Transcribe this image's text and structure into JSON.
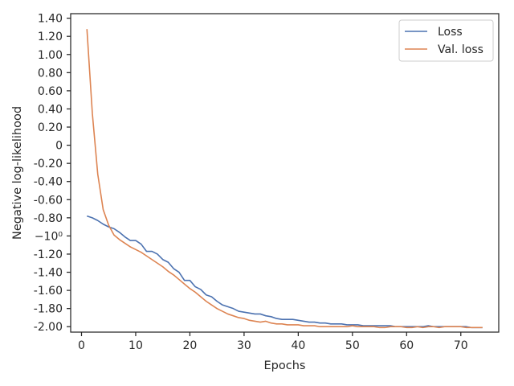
{
  "chart_data": {
    "type": "line",
    "xlabel": "Epochs",
    "ylabel": "Negative log-likelihood",
    "xlim": [
      -2,
      77
    ],
    "ylim": [
      -2.06,
      1.45
    ],
    "x_ticks": [
      0,
      10,
      20,
      30,
      40,
      50,
      60,
      70
    ],
    "y_ticks": [
      {
        "value": 1.4,
        "label": "1.40"
      },
      {
        "value": 1.2,
        "label": "1.20"
      },
      {
        "value": 1.0,
        "label": "1.00"
      },
      {
        "value": 0.8,
        "label": "0.80"
      },
      {
        "value": 0.6,
        "label": "0.60"
      },
      {
        "value": 0.4,
        "label": "0.40"
      },
      {
        "value": 0.2,
        "label": "0.20"
      },
      {
        "value": 0.0,
        "label": "0"
      },
      {
        "value": -0.2,
        "label": "-0.20"
      },
      {
        "value": -0.4,
        "label": "-0.40"
      },
      {
        "value": -0.6,
        "label": "-0.60"
      },
      {
        "value": -0.8,
        "label": "-0.80"
      },
      {
        "value": -1.0,
        "label": "−10⁰"
      },
      {
        "value": -1.2,
        "label": "-1.20"
      },
      {
        "value": -1.4,
        "label": "-1.40"
      },
      {
        "value": -1.6,
        "label": "-1.60"
      },
      {
        "value": -1.8,
        "label": "-1.80"
      },
      {
        "value": -2.0,
        "label": "-2.00"
      }
    ],
    "grid": false,
    "legend_position": "top-right",
    "series": [
      {
        "name": "Loss",
        "color": "#4c72b0",
        "x": [
          1,
          2,
          3,
          4,
          5,
          6,
          7,
          8,
          9,
          10,
          11,
          12,
          13,
          14,
          15,
          16,
          17,
          18,
          19,
          20,
          21,
          22,
          23,
          24,
          25,
          26,
          27,
          28,
          29,
          30,
          31,
          32,
          33,
          34,
          35,
          36,
          37,
          38,
          39,
          40,
          41,
          42,
          43,
          44,
          45,
          46,
          47,
          48,
          49,
          50,
          51,
          52,
          53,
          54,
          55,
          56,
          57,
          58,
          59,
          60,
          61,
          62,
          63,
          64,
          65,
          66,
          67,
          68,
          69,
          70,
          71,
          72,
          73,
          74
        ],
        "y": [
          -0.78,
          -0.8,
          -0.83,
          -0.87,
          -0.9,
          -0.92,
          -0.96,
          -1.01,
          -1.05,
          -1.05,
          -1.09,
          -1.17,
          -1.17,
          -1.2,
          -1.26,
          -1.29,
          -1.36,
          -1.4,
          -1.49,
          -1.49,
          -1.56,
          -1.59,
          -1.65,
          -1.67,
          -1.72,
          -1.76,
          -1.78,
          -1.8,
          -1.83,
          -1.84,
          -1.85,
          -1.86,
          -1.86,
          -1.88,
          -1.89,
          -1.91,
          -1.92,
          -1.92,
          -1.92,
          -1.93,
          -1.94,
          -1.95,
          -1.95,
          -1.96,
          -1.96,
          -1.97,
          -1.97,
          -1.97,
          -1.98,
          -1.98,
          -1.98,
          -1.99,
          -1.99,
          -1.99,
          -1.99,
          -1.99,
          -1.99,
          -2.0,
          -2.0,
          -2.0,
          -2.0,
          -2.0,
          -2.0,
          -1.99,
          -2.0,
          -2.0,
          -2.0,
          -2.0,
          -2.0,
          -2.0,
          -2.0,
          -2.01,
          -2.01,
          -2.01
        ]
      },
      {
        "name": "Val. loss",
        "color": "#dd8452",
        "x": [
          1,
          2,
          3,
          4,
          5,
          6,
          7,
          8,
          9,
          10,
          11,
          12,
          13,
          14,
          15,
          16,
          17,
          18,
          19,
          20,
          21,
          22,
          23,
          24,
          25,
          26,
          27,
          28,
          29,
          30,
          31,
          32,
          33,
          34,
          35,
          36,
          37,
          38,
          39,
          40,
          41,
          42,
          43,
          44,
          45,
          46,
          47,
          48,
          49,
          50,
          51,
          52,
          53,
          54,
          55,
          56,
          57,
          58,
          59,
          60,
          61,
          62,
          63,
          64,
          65,
          66,
          67,
          68,
          69,
          70,
          71,
          72,
          73,
          74
        ],
        "y": [
          1.28,
          0.35,
          -0.32,
          -0.71,
          -0.88,
          -0.99,
          -1.04,
          -1.08,
          -1.12,
          -1.15,
          -1.18,
          -1.22,
          -1.26,
          -1.3,
          -1.34,
          -1.39,
          -1.43,
          -1.48,
          -1.53,
          -1.58,
          -1.62,
          -1.67,
          -1.72,
          -1.76,
          -1.8,
          -1.83,
          -1.86,
          -1.88,
          -1.9,
          -1.91,
          -1.93,
          -1.94,
          -1.95,
          -1.94,
          -1.96,
          -1.97,
          -1.97,
          -1.98,
          -1.98,
          -1.98,
          -1.99,
          -1.99,
          -1.99,
          -2.0,
          -2.0,
          -2.0,
          -2.0,
          -2.0,
          -2.0,
          -1.99,
          -2.0,
          -2.0,
          -2.0,
          -2.0,
          -2.01,
          -2.01,
          -2.0,
          -2.0,
          -2.0,
          -2.01,
          -2.01,
          -2.0,
          -2.01,
          -2.0,
          -2.0,
          -2.01,
          -2.0,
          -2.0,
          -2.0,
          -2.0,
          -2.01,
          -2.01,
          -2.01,
          -2.01
        ]
      }
    ]
  }
}
